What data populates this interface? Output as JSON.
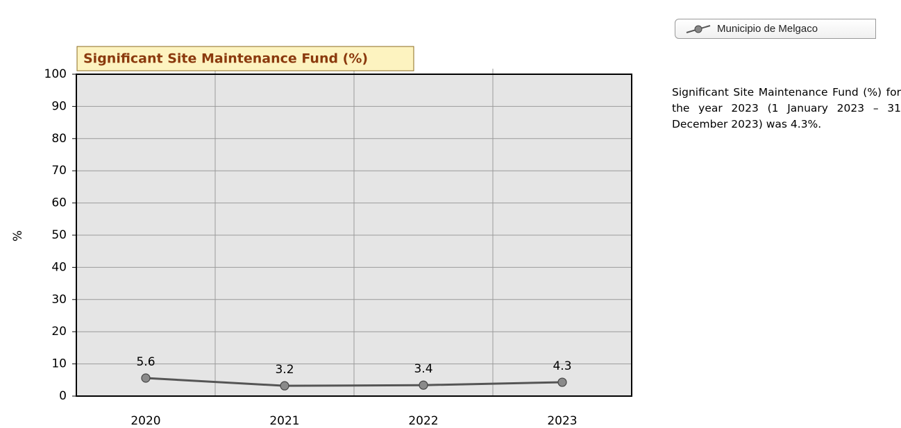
{
  "chart_data": {
    "type": "line",
    "title": "Significant Site Maintenance Fund (%)",
    "ylabel": "%",
    "categories": [
      "2020",
      "2021",
      "2022",
      "2023"
    ],
    "series": [
      {
        "name": "Municipio de Melgaco",
        "color": "#555555",
        "values": [
          5.6,
          3.2,
          3.4,
          4.3
        ]
      }
    ],
    "ylim": [
      0,
      100
    ],
    "yticks": [
      0,
      10,
      20,
      30,
      40,
      50,
      60,
      70,
      80,
      90,
      100
    ],
    "grid": true,
    "description": "Significant Site Maintenance Fund (%) for the year 2023 (1 January 2023 – 31 December 2023) was 4.3%."
  }
}
